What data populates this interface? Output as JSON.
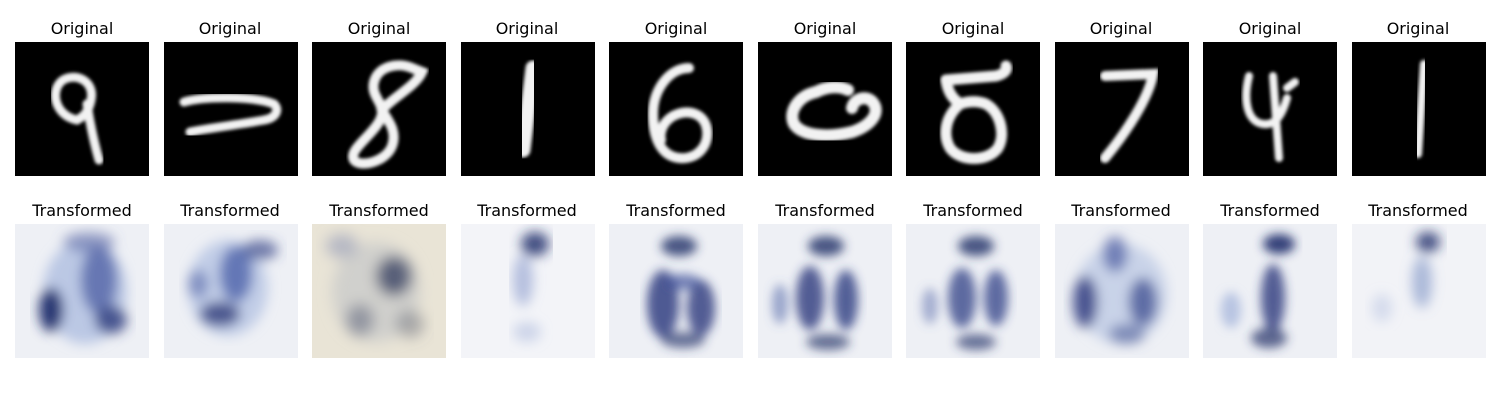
{
  "figure": {
    "rows": [
      {
        "row_name": "original",
        "panels": [
          {
            "title": "Original",
            "content": "digit-9"
          },
          {
            "title": "Original",
            "content": "digit-2"
          },
          {
            "title": "Original",
            "content": "digit-8"
          },
          {
            "title": "Original",
            "content": "digit-1"
          },
          {
            "title": "Original",
            "content": "digit-6"
          },
          {
            "title": "Original",
            "content": "digit-0"
          },
          {
            "title": "Original",
            "content": "digit-8"
          },
          {
            "title": "Original",
            "content": "digit-7"
          },
          {
            "title": "Original",
            "content": "digit-4"
          },
          {
            "title": "Original",
            "content": "digit-1"
          }
        ]
      },
      {
        "row_name": "transformed",
        "panels": [
          {
            "title": "Transformed",
            "content": "blurry-blue-digit"
          },
          {
            "title": "Transformed",
            "content": "blurry-blue-digit"
          },
          {
            "title": "Transformed",
            "content": "blurry-tan-digit"
          },
          {
            "title": "Transformed",
            "content": "faint-blue-digit"
          },
          {
            "title": "Transformed",
            "content": "blurry-blue-digit"
          },
          {
            "title": "Transformed",
            "content": "blurry-blue-digit"
          },
          {
            "title": "Transformed",
            "content": "blurry-blue-digit"
          },
          {
            "title": "Transformed",
            "content": "blurry-blue-digit"
          },
          {
            "title": "Transformed",
            "content": "blurry-blue-digit"
          },
          {
            "title": "Transformed",
            "content": "faint-blue-digit"
          }
        ]
      }
    ],
    "colors": {
      "original_background": "#000000",
      "original_stroke": "#f2f2f2",
      "transformed_background": "#f1f2f6",
      "transformed_ink": "#1f2d6b",
      "transformed_tint": "#6f86c0",
      "tan_background": "#e9e4d6"
    }
  }
}
